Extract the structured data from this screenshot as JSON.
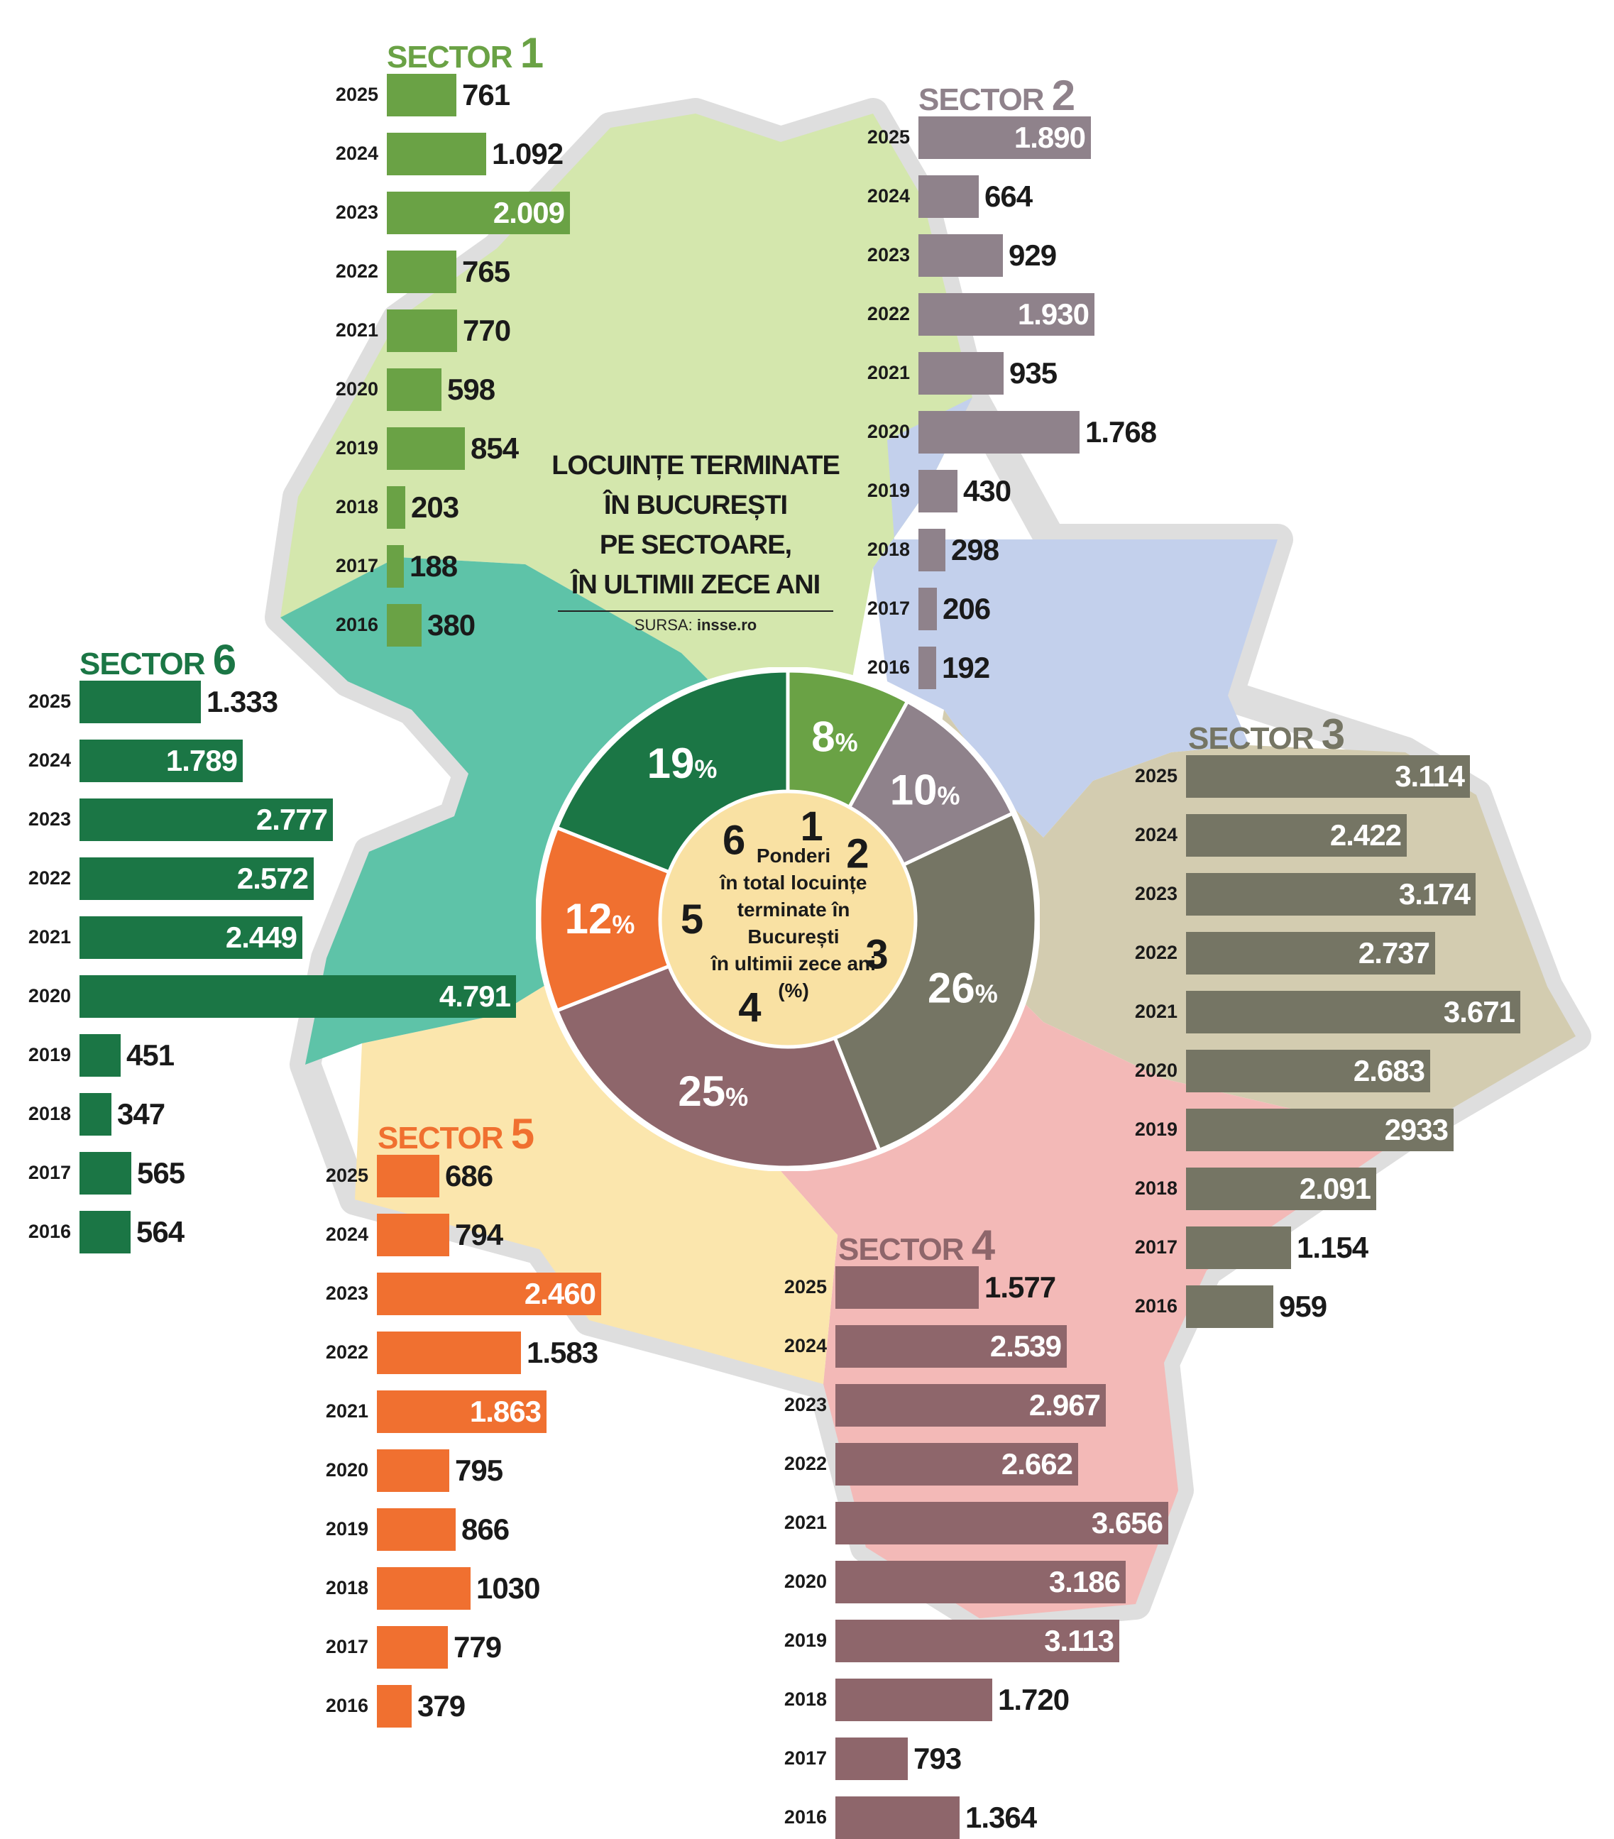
{
  "title": {
    "lines": [
      "LOCUINȚE TERMINATE",
      "ÎN BUCUREȘTI",
      "PE SECTOARE,",
      "ÎN ULTIMII ZECE ANI"
    ],
    "source_prefix": "SURSA:",
    "source_name": "insse.ro"
  },
  "colors": {
    "sector1": "#6aa245",
    "sector2": "#8f828b",
    "sector3": "#757564",
    "sector4": "#8e666b",
    "sector5": "#f07030",
    "sector6": "#1b7645",
    "map_sector1": "#d4e7ad",
    "map_sector2": "#c3d0ec",
    "map_sector3": "#d3ccb0",
    "map_sector4": "#f3b9b7",
    "map_sector5": "#fbe6ad",
    "map_sector6": "#5ec3a8",
    "map_border": "#dcdcdc",
    "donut_center": "#f9e1a3"
  },
  "chart_data": [
    {
      "type": "bar",
      "orientation": "horizontal",
      "title": "SECTOR 1",
      "title_word": "SECTOR",
      "title_number": "1",
      "color": "#6aa245",
      "categories": [
        "2025",
        "2024",
        "2023",
        "2022",
        "2021",
        "2020",
        "2019",
        "2018",
        "2017",
        "2016"
      ],
      "values": [
        761,
        1092,
        2009,
        765,
        770,
        598,
        854,
        203,
        188,
        380
      ],
      "labels": [
        "761",
        "1.092",
        "2.009",
        "765",
        "770",
        "598",
        "854",
        "203",
        "188",
        "380"
      ]
    },
    {
      "type": "bar",
      "orientation": "horizontal",
      "title": "SECTOR 2",
      "title_word": "SECTOR",
      "title_number": "2",
      "color": "#8f828b",
      "categories": [
        "2025",
        "2024",
        "2023",
        "2022",
        "2021",
        "2020",
        "2019",
        "2018",
        "2017",
        "2016"
      ],
      "values": [
        1890,
        664,
        929,
        1930,
        935,
        1768,
        430,
        298,
        206,
        192
      ],
      "labels": [
        "1.890",
        "664",
        "929",
        "1.930",
        "935",
        "1.768",
        "430",
        "298",
        "206",
        "192"
      ]
    },
    {
      "type": "bar",
      "orientation": "horizontal",
      "title": "SECTOR 3",
      "title_word": "SECTOR",
      "title_number": "3",
      "color": "#757564",
      "categories": [
        "2025",
        "2024",
        "2023",
        "2022",
        "2021",
        "2020",
        "2019",
        "2018",
        "2017",
        "2016"
      ],
      "values": [
        3114,
        2422,
        3174,
        2737,
        3671,
        2683,
        2933,
        2091,
        1154,
        959
      ],
      "labels": [
        "3.114",
        "2.422",
        "3.174",
        "2.737",
        "3.671",
        "2.683",
        "2933",
        "2.091",
        "1.154",
        "959"
      ]
    },
    {
      "type": "bar",
      "orientation": "horizontal",
      "title": "SECTOR 4",
      "title_word": "SECTOR",
      "title_number": "4",
      "color": "#8e666b",
      "categories": [
        "2025",
        "2024",
        "2023",
        "2022",
        "2021",
        "2020",
        "2019",
        "2018",
        "2017",
        "2016"
      ],
      "values": [
        1577,
        2539,
        2967,
        2662,
        3656,
        3186,
        3113,
        1720,
        793,
        1364
      ],
      "labels": [
        "1.577",
        "2.539",
        "2.967",
        "2.662",
        "3.656",
        "3.186",
        "3.113",
        "1.720",
        "793",
        "1.364"
      ]
    },
    {
      "type": "bar",
      "orientation": "horizontal",
      "title": "SECTOR 5",
      "title_word": "SECTOR",
      "title_number": "5",
      "color": "#f07030",
      "categories": [
        "2025",
        "2024",
        "2023",
        "2022",
        "2021",
        "2020",
        "2019",
        "2018",
        "2017",
        "2016"
      ],
      "values": [
        686,
        794,
        2460,
        1583,
        1863,
        795,
        866,
        1030,
        779,
        379
      ],
      "labels": [
        "686",
        "794",
        "2.460",
        "1.583",
        "1.863",
        "795",
        "866",
        "1030",
        "779",
        "379"
      ]
    },
    {
      "type": "bar",
      "orientation": "horizontal",
      "title": "SECTOR 6",
      "title_word": "SECTOR",
      "title_number": "6",
      "color": "#1b7645",
      "categories": [
        "2025",
        "2024",
        "2023",
        "2022",
        "2021",
        "2020",
        "2019",
        "2018",
        "2017",
        "2016"
      ],
      "values": [
        1333,
        1789,
        2777,
        2572,
        2449,
        4791,
        451,
        347,
        565,
        564
      ],
      "labels": [
        "1.333",
        "1.789",
        "2.777",
        "2.572",
        "2.449",
        "4.791",
        "451",
        "347",
        "565",
        "564"
      ]
    },
    {
      "type": "pie",
      "variant": "donut",
      "center_label_lines": [
        "Ponderi",
        "în total locuințe",
        "terminate în",
        "București",
        "în ultimii zece ani",
        "(%)"
      ],
      "unit": "%",
      "slices": [
        {
          "sector": "1",
          "value": 8,
          "label": "8",
          "color": "#6aa245"
        },
        {
          "sector": "2",
          "value": 10,
          "label": "10",
          "color": "#8f828b"
        },
        {
          "sector": "3",
          "value": 26,
          "label": "26",
          "color": "#757564"
        },
        {
          "sector": "4",
          "value": 25,
          "label": "25",
          "color": "#8e666b"
        },
        {
          "sector": "5",
          "value": 12,
          "label": "12",
          "color": "#f07030"
        },
        {
          "sector": "6",
          "value": 19,
          "label": "19",
          "color": "#1b7645"
        }
      ]
    }
  ]
}
